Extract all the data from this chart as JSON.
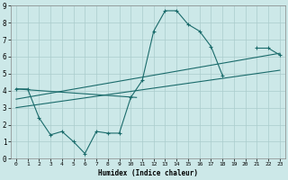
{
  "title": "",
  "xlabel": "Humidex (Indice chaleur)",
  "bg_color": "#cce8e8",
  "grid_color": "#aacccc",
  "line_color": "#1a6b6b",
  "xlim": [
    -0.5,
    23.5
  ],
  "ylim": [
    0,
    9
  ],
  "xticks": [
    0,
    1,
    2,
    3,
    4,
    5,
    6,
    7,
    8,
    9,
    10,
    11,
    12,
    13,
    14,
    15,
    16,
    17,
    18,
    19,
    20,
    21,
    22,
    23
  ],
  "yticks": [
    0,
    1,
    2,
    3,
    4,
    5,
    6,
    7,
    8,
    9
  ],
  "curve1_x": [
    0,
    1,
    2,
    3,
    4,
    5,
    6,
    7,
    8,
    9,
    10,
    11,
    12,
    13,
    14,
    15,
    16,
    17,
    18,
    19,
    20,
    21,
    22,
    23
  ],
  "curve1_y": [
    4.1,
    4.1,
    2.4,
    1.4,
    1.6,
    1.0,
    0.3,
    1.6,
    1.5,
    1.5,
    3.6,
    4.6,
    7.5,
    8.7,
    8.7,
    7.9,
    7.5,
    6.6,
    4.9,
    null,
    null,
    6.5,
    6.5,
    6.1
  ],
  "line1_x": [
    0,
    23
  ],
  "line1_y": [
    3.0,
    5.2
  ],
  "line2_x": [
    0,
    23
  ],
  "line2_y": [
    3.5,
    6.2
  ],
  "line3_x": [
    0,
    10.5
  ],
  "line3_y": [
    4.1,
    3.6
  ]
}
